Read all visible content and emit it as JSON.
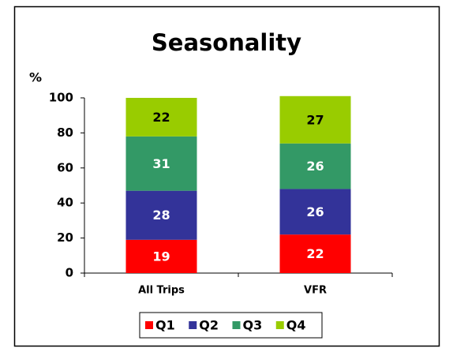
{
  "chart_data": {
    "type": "stacked_bar",
    "title": "Seasonality",
    "y_label": "%",
    "categories": [
      "All Trips",
      "VFR"
    ],
    "series": [
      {
        "name": "Q1",
        "color": "#ff0000",
        "label_color": "#ffffff",
        "values": [
          19,
          22
        ]
      },
      {
        "name": "Q2",
        "color": "#333399",
        "label_color": "#ffffff",
        "values": [
          28,
          26
        ]
      },
      {
        "name": "Q3",
        "color": "#339966",
        "label_color": "#ffffff",
        "values": [
          31,
          26
        ]
      },
      {
        "name": "Q4",
        "color": "#99cc00",
        "label_color": "#000000",
        "values": [
          22,
          27
        ]
      }
    ],
    "ylim": [
      0,
      100
    ],
    "yticks": [
      0,
      20,
      40,
      60,
      80,
      100
    ],
    "grid": false,
    "legend": "bottom"
  }
}
